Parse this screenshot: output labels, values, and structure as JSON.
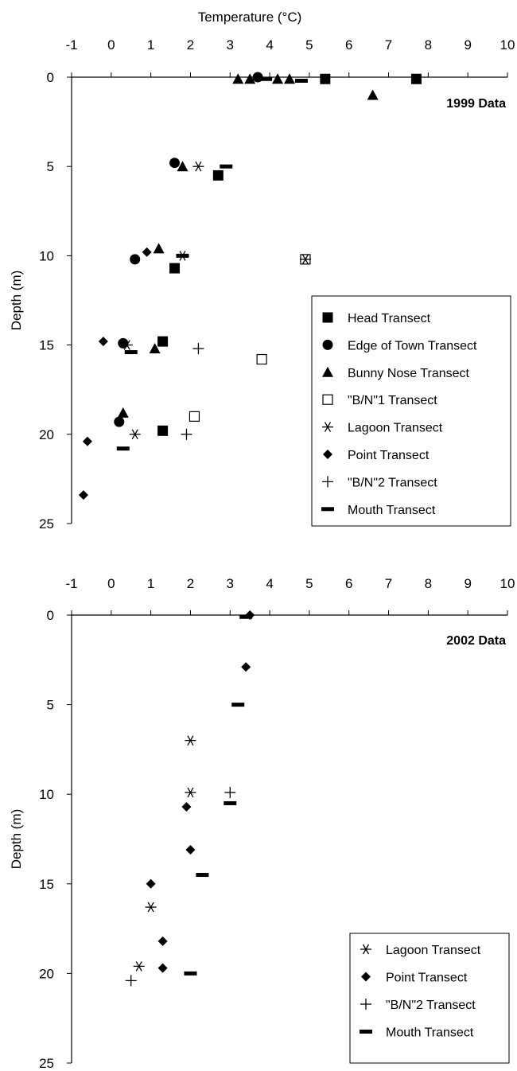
{
  "chart_data": [
    {
      "type": "scatter",
      "label": "1999 Data",
      "xlabel": "Temperature (°C)",
      "ylabel": "Depth (m)",
      "xlim": [
        -1,
        10
      ],
      "ylim": [
        0,
        25
      ],
      "x_ticks": [
        "-1",
        "0",
        "1",
        "2",
        "3",
        "4",
        "5",
        "6",
        "7",
        "8",
        "9",
        "10"
      ],
      "y_ticks": [
        "0",
        "5",
        "10",
        "15",
        "20",
        "25"
      ],
      "y_inverted": true,
      "legend_position": "right-middle",
      "series": [
        {
          "name": "Head Transect",
          "marker": "filled-square",
          "points": [
            [
              5.4,
              0.1
            ],
            [
              7.7,
              0.1
            ],
            [
              2.7,
              5.5
            ],
            [
              1.6,
              10.7
            ],
            [
              1.3,
              14.8
            ],
            [
              1.3,
              19.8
            ]
          ]
        },
        {
          "name": "Edge of Town Transect",
          "marker": "filled-circle",
          "points": [
            [
              3.7,
              0.0
            ],
            [
              1.6,
              4.8
            ],
            [
              0.6,
              10.2
            ],
            [
              0.3,
              14.9
            ],
            [
              0.2,
              19.3
            ]
          ]
        },
        {
          "name": "Bunny Nose Transect",
          "marker": "filled-triangle",
          "points": [
            [
              3.2,
              0.1
            ],
            [
              3.5,
              0.1
            ],
            [
              4.2,
              0.1
            ],
            [
              4.5,
              0.1
            ],
            [
              6.6,
              1.0
            ],
            [
              1.8,
              5.0
            ],
            [
              1.2,
              9.6
            ],
            [
              1.1,
              15.2
            ],
            [
              0.3,
              18.8
            ]
          ]
        },
        {
          "name": "\"B/N\"1 Transect",
          "marker": "open-square",
          "points": [
            [
              4.9,
              10.2
            ],
            [
              3.8,
              15.8
            ],
            [
              2.1,
              19.0
            ]
          ]
        },
        {
          "name": "Lagoon Transect",
          "marker": "asterisk",
          "points": [
            [
              2.2,
              5.0
            ],
            [
              1.8,
              10.0
            ],
            [
              4.9,
              10.2
            ],
            [
              0.4,
              15.0
            ],
            [
              0.6,
              20.0
            ]
          ]
        },
        {
          "name": "Point Transect",
          "marker": "filled-diamond",
          "points": [
            [
              0.9,
              9.8
            ],
            [
              -0.2,
              14.8
            ],
            [
              -0.6,
              20.4
            ],
            [
              -0.7,
              23.4
            ]
          ]
        },
        {
          "name": "\"B/N\"2 Transect",
          "marker": "plus",
          "points": [
            [
              2.2,
              15.2
            ],
            [
              1.9,
              20.0
            ]
          ]
        },
        {
          "name": "Mouth Transect",
          "marker": "dash",
          "points": [
            [
              3.9,
              0.1
            ],
            [
              4.8,
              0.2
            ],
            [
              2.9,
              5.0
            ],
            [
              1.8,
              10.0
            ],
            [
              0.5,
              15.4
            ],
            [
              0.3,
              20.8
            ]
          ]
        }
      ]
    },
    {
      "type": "scatter",
      "label": "2002 Data",
      "ylabel": "Depth (m)",
      "xlim": [
        -1,
        10
      ],
      "ylim": [
        0,
        25
      ],
      "x_ticks": [
        "-1",
        "0",
        "1",
        "2",
        "3",
        "4",
        "5",
        "6",
        "7",
        "8",
        "9",
        "10"
      ],
      "y_ticks": [
        "0",
        "5",
        "10",
        "15",
        "20",
        "25"
      ],
      "y_inverted": true,
      "legend_position": "bottom-right",
      "series": [
        {
          "name": "Lagoon Transect",
          "marker": "asterisk",
          "points": [
            [
              2.0,
              7.0
            ],
            [
              2.0,
              9.9
            ],
            [
              1.0,
              16.3
            ],
            [
              0.7,
              19.6
            ]
          ]
        },
        {
          "name": "Point Transect",
          "marker": "filled-diamond",
          "points": [
            [
              3.5,
              0.0
            ],
            [
              3.4,
              2.9
            ],
            [
              1.9,
              10.7
            ],
            [
              2.0,
              13.1
            ],
            [
              1.0,
              15.0
            ],
            [
              1.3,
              18.2
            ],
            [
              1.3,
              19.7
            ]
          ]
        },
        {
          "name": "\"B/N\"2 Transect",
          "marker": "plus",
          "points": [
            [
              3.0,
              9.9
            ],
            [
              0.5,
              20.4
            ]
          ]
        },
        {
          "name": "Mouth Transect",
          "marker": "dash",
          "points": [
            [
              3.4,
              0.1
            ],
            [
              3.2,
              5.0
            ],
            [
              3.0,
              10.5
            ],
            [
              2.3,
              14.5
            ],
            [
              2.0,
              20.0
            ]
          ]
        }
      ]
    }
  ]
}
